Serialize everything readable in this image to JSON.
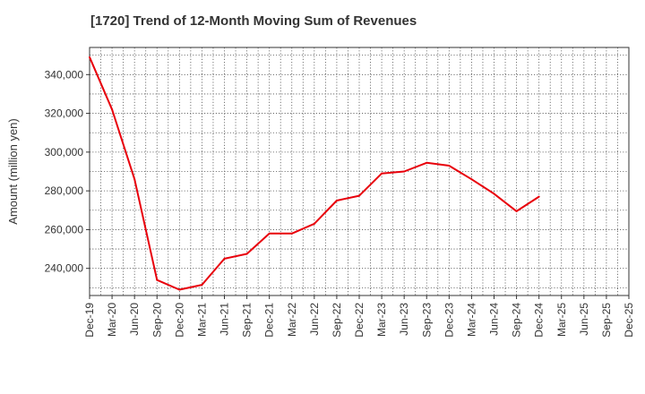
{
  "title": "[1720]  Trend of 12-Month Moving Sum of Revenues",
  "colors": {
    "line": "#e8000b",
    "grid": "#555555",
    "axis": "#333333",
    "text": "#333333"
  },
  "chart_data": {
    "type": "line",
    "title": "[1720]  Trend of 12-Month Moving Sum of Revenues",
    "xlabel": "",
    "ylabel": "Amount (million yen)",
    "categories": [
      "Dec-19",
      "Mar-20",
      "Jun-20",
      "Sep-20",
      "Dec-20",
      "Mar-21",
      "Jun-21",
      "Sep-21",
      "Dec-21",
      "Mar-22",
      "Jun-22",
      "Sep-22",
      "Dec-22",
      "Mar-23",
      "Jun-23",
      "Sep-23",
      "Dec-23",
      "Mar-24",
      "Jun-24",
      "Sep-24",
      "Dec-24",
      "Mar-25"
    ],
    "x_tick_labels": [
      "Dec-19",
      "Mar-20",
      "Jun-20",
      "Sep-20",
      "Dec-20",
      "Mar-21",
      "Jun-21",
      "Sep-21",
      "Dec-21",
      "Mar-22",
      "Jun-22",
      "Sep-22",
      "Dec-22",
      "Mar-23",
      "Jun-23",
      "Sep-23",
      "Dec-23",
      "Mar-24",
      "Jun-24",
      "Sep-24",
      "Dec-24",
      "Mar-25",
      "Jun-25",
      "Sep-25",
      "Dec-25"
    ],
    "ylim": [
      226000,
      354000
    ],
    "yticks": [
      240000,
      260000,
      280000,
      300000,
      320000,
      340000
    ],
    "ytick_labels": [
      "240,000",
      "260,000",
      "280,000",
      "300,000",
      "320,000",
      "340,000"
    ],
    "grid": true,
    "series": [
      {
        "values": [
          349000,
          322000,
          286000,
          234000,
          229000,
          231500,
          245000,
          247500,
          258000,
          258000,
          263000,
          275000,
          277500,
          289000,
          290000,
          294500,
          293000,
          286000,
          278500,
          269500,
          277000,
          null
        ]
      }
    ]
  }
}
